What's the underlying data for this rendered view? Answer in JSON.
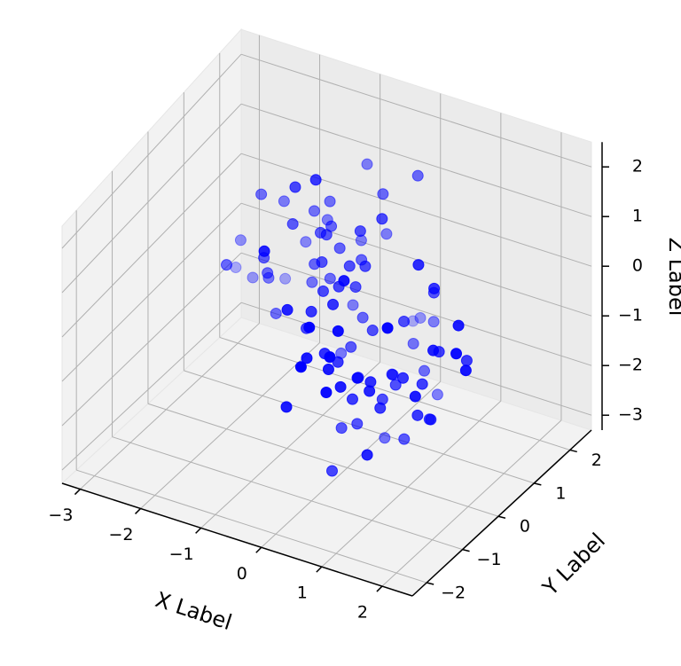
{
  "chart_data": {
    "type": "scatter3d",
    "x_label": "X Label",
    "y_label": "Y Label",
    "z_label": "Z Label",
    "color": "#0000ff",
    "depthshade": true,
    "grid": true,
    "xlim": [
      -3.3,
      2.5
    ],
    "ylim": [
      -2.4,
      2.6
    ],
    "zlim": [
      -3.3,
      2.5
    ],
    "xticks": [
      {
        "value": -3,
        "label": "−3"
      },
      {
        "value": -2,
        "label": "−2"
      },
      {
        "value": -1,
        "label": "−1"
      },
      0,
      1,
      2
    ],
    "yticks": [
      {
        "value": -2,
        "label": "−2"
      },
      {
        "value": -1,
        "label": "−1"
      },
      0,
      1,
      2
    ],
    "zticks": [
      {
        "value": -3,
        "label": "−3"
      },
      {
        "value": -2,
        "label": "−2"
      },
      {
        "value": -1,
        "label": "−1"
      },
      0,
      1,
      2
    ],
    "x": [
      -0.1,
      0.5,
      -1.2,
      0.3,
      1.1,
      -0.6,
      0.8,
      -0.3,
      0.2,
      -1.5,
      0.9,
      -0.8,
      0.1,
      1.4,
      -0.4,
      0.6,
      -2.1,
      0.0,
      0.7,
      -1.0,
      1.6,
      -0.2,
      0.4,
      -0.7,
      1.2,
      -1.8,
      0.3,
      -0.5,
      0.9,
      -0.1,
      2.1,
      -1.3,
      0.5,
      0.2,
      -0.9,
      1.0,
      -0.6,
      0.7,
      -2.5,
      0.1,
      1.5,
      -0.3,
      0.8,
      -1.1,
      0.4,
      -0.8,
      1.3,
      0.0,
      -1.6,
      0.6,
      -0.4,
      1.8,
      -0.2,
      0.9,
      -1.4,
      0.3,
      0.5,
      -0.7,
      1.1,
      -2.0,
      0.2,
      -0.9,
      0.7,
      1.9,
      -0.5,
      0.1,
      -1.2,
      0.8,
      -0.3,
      1.4,
      -1.7,
      0.4,
      0.6,
      -0.1,
      1.0,
      -2.3,
      0.3,
      -0.6,
      1.2,
      0.0,
      -1.0,
      0.5,
      -0.4,
      1.6,
      -0.8,
      0.2,
      -1.5,
      0.9,
      0.1,
      -0.2,
      1.3,
      -1.9,
      0.6,
      -0.7,
      0.4,
      2.2,
      -1.1,
      0.0,
      0.8,
      -0.3
    ],
    "y": [
      0.4,
      -0.7,
      1.1,
      0.2,
      -1.3,
      0.8,
      -0.1,
      1.5,
      -0.5,
      0.3,
      -0.9,
      0.6,
      1.8,
      -0.4,
      0.0,
      -1.6,
      0.9,
      0.5,
      -0.2,
      1.2,
      -0.8,
      0.1,
      -1.1,
      0.7,
      0.4,
      1.3,
      -0.6,
      -0.3,
      0.9,
      2.0,
      -0.5,
      0.2,
      1.0,
      -1.4,
      0.6,
      -0.1,
      0.3,
      -0.9,
      1.1,
      0.8,
      -0.2,
      1.6,
      -0.7,
      0.4,
      -1.2,
      0.9,
      0.1,
      -0.4,
      0.5,
      1.4,
      -1.0,
      0.3,
      0.7,
      -0.6,
      1.2,
      -1.8,
      0.2,
      0.6,
      -0.3,
      0.0,
      1.7,
      -0.8,
      0.4,
      -0.1,
      1.0,
      -1.3,
      0.5,
      0.8,
      -0.5,
      0.2,
      1.1,
      -0.4,
      -1.5,
      0.6,
      0.3,
      0.9,
      -0.2,
      1.4,
      -0.9,
      0.1,
      0.7,
      -1.1,
      0.5,
      -0.3,
      1.9,
      -0.6,
      0.2,
      1.0,
      -0.8,
      0.4,
      -0.1,
      0.8,
      -1.2,
      0.3,
      0.6,
      -0.4,
      1.3,
      -1.7,
      0.0,
      0.9
    ],
    "z": [
      0.2,
      -1.1,
      0.8,
      -0.4,
      -1.6,
      0.5,
      -0.9,
      1.2,
      -2.0,
      0.0,
      -0.6,
      0.9,
      1.5,
      -1.3,
      0.3,
      -0.2,
      -0.8,
      0.6,
      -1.4,
      1.0,
      -0.5,
      0.4,
      -2.4,
      -0.1,
      0.7,
      -1.0,
      1.3,
      -0.3,
      0.1,
      -1.7,
      0.4,
      -0.7,
      -1.2,
      0.9,
      0.2,
      -2.2,
      0.6,
      -0.4,
      -0.9,
      1.4,
      -1.5,
      0.3,
      -0.6,
      1.9,
      -0.1,
      0.8,
      -1.8,
      0.5,
      -0.3,
      -1.0,
      0.7,
      -0.5,
      1.1,
      -1.2,
      0.0,
      0.4,
      -2.6,
      0.9,
      -0.7,
      0.2,
      -1.3,
      1.6,
      -0.2,
      0.6,
      -0.8,
      0.1,
      1.0,
      -1.5,
      0.3,
      -0.4,
      0.8,
      -1.9,
      0.5,
      -0.6,
      1.2,
      -0.1,
      -1.1,
      0.2,
      0.9,
      -0.8,
      -0.3,
      0.7,
      -1.4,
      0.1,
      1.3,
      -0.5,
      0.4,
      -2.1,
      -0.2,
      0.6,
      -0.9,
      1.1,
      -0.4,
      2.3,
      -1.6,
      0.0,
      0.5,
      -0.7,
      -1.2,
      0.3
    ]
  }
}
